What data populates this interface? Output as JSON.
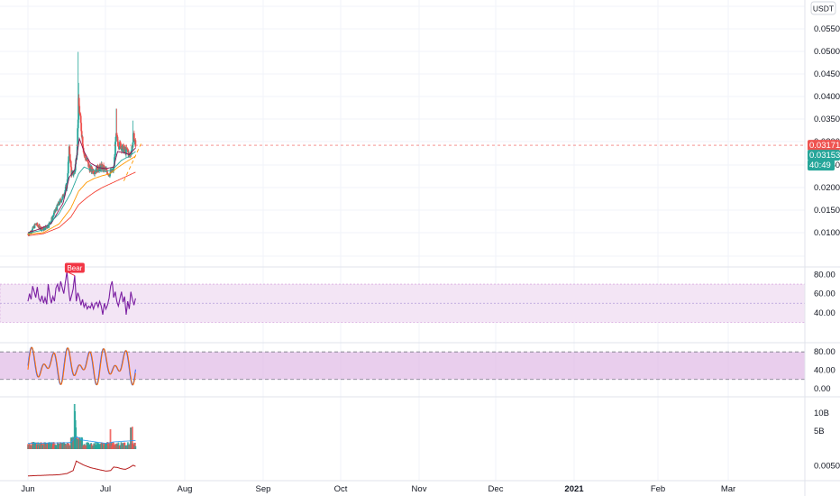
{
  "currency": {
    "label": "USDT"
  },
  "price_tags": {
    "upper": {
      "value": "0.03171",
      "color": "#ef5350"
    },
    "lower": {
      "value": "0.03153",
      "color": "#26a69a"
    },
    "countdown": {
      "value": "40:49",
      "color": "#26a69a"
    }
  },
  "colors": {
    "up": "#26a69a",
    "down": "#ef5350",
    "ma_fast": "#880e4f",
    "ma_mid": "#26a69a",
    "ma_slow": "#ff9800",
    "ma_long": "#f44336",
    "rsi": "#7b1fa2",
    "stoch_k": "#2962ff",
    "stoch_d": "#ff6d00",
    "band_fill": "#f3e5f5",
    "stoch_fill": "#e1bee7",
    "obv": "#b71c1c",
    "grid": "#f0f3fa",
    "divider": "#e0e3eb",
    "divergence_tag": "#f23645"
  },
  "chart_data": [
    {
      "type": "candlestick",
      "name": "price",
      "x_labels": [
        "Jun",
        "Jul",
        "Aug",
        "Sep",
        "Oct",
        "Nov",
        "Dec",
        "2021",
        "Feb",
        "Mar"
      ],
      "y_ticks": [
        "0.05500",
        "0.05000",
        "0.04500",
        "0.04000",
        "0.03500",
        "0.03000",
        "0.02500",
        "0.02000",
        "0.01500",
        "0.01000"
      ],
      "ylim": [
        0.0085,
        0.0595
      ],
      "last_price": 0.03171,
      "anchors": [
        [
          0,
          0.0145
        ],
        [
          0.05,
          0.0152
        ],
        [
          0.1,
          0.0165
        ],
        [
          0.15,
          0.0158
        ],
        [
          0.2,
          0.0155
        ],
        [
          0.25,
          0.016
        ],
        [
          0.3,
          0.0172
        ],
        [
          0.35,
          0.019
        ],
        [
          0.4,
          0.0205
        ],
        [
          0.45,
          0.0218
        ],
        [
          0.5,
          0.024
        ],
        [
          0.53,
          0.031
        ],
        [
          0.56,
          0.026
        ],
        [
          0.6,
          0.0265
        ],
        [
          0.63,
          0.031
        ],
        [
          0.65,
          0.04
        ],
        [
          0.68,
          0.0355
        ],
        [
          0.72,
          0.03
        ],
        [
          0.76,
          0.0285
        ],
        [
          0.8,
          0.027
        ],
        [
          0.85,
          0.0268
        ],
        [
          0.9,
          0.0272
        ],
        [
          0.95,
          0.0275
        ],
        [
          1.0,
          0.0268
        ],
        [
          1.05,
          0.0262
        ],
        [
          1.1,
          0.027
        ],
        [
          1.13,
          0.0335
        ],
        [
          1.16,
          0.032
        ],
        [
          1.2,
          0.0315
        ],
        [
          1.25,
          0.0305
        ],
        [
          1.28,
          0.0308
        ],
        [
          1.3,
          0.0295
        ],
        [
          1.33,
          0.031
        ],
        [
          1.36,
          0.0335
        ],
        [
          1.38,
          0.0318
        ]
      ],
      "spikes": [
        [
          0.645,
          0.0498
        ],
        [
          0.648,
          0.0438
        ],
        [
          0.658,
          0.0395
        ],
        [
          1.135,
          0.0388
        ],
        [
          1.345,
          0.0365
        ]
      ],
      "ma_fast": [
        [
          0,
          0.0148
        ],
        [
          0.15,
          0.0155
        ],
        [
          0.3,
          0.0166
        ],
        [
          0.45,
          0.0205
        ],
        [
          0.53,
          0.0255
        ],
        [
          0.6,
          0.027
        ],
        [
          0.66,
          0.033
        ],
        [
          0.72,
          0.0305
        ],
        [
          0.8,
          0.0283
        ],
        [
          0.9,
          0.0274
        ],
        [
          1.0,
          0.0272
        ],
        [
          1.1,
          0.0275
        ],
        [
          1.15,
          0.0305
        ],
        [
          1.25,
          0.0302
        ],
        [
          1.3,
          0.0299
        ],
        [
          1.38,
          0.0312
        ]
      ],
      "ma_mid": [
        [
          0,
          0.0147
        ],
        [
          0.2,
          0.0153
        ],
        [
          0.4,
          0.0185
        ],
        [
          0.55,
          0.0225
        ],
        [
          0.65,
          0.0262
        ],
        [
          0.72,
          0.0275
        ],
        [
          0.8,
          0.027
        ],
        [
          0.9,
          0.0268
        ],
        [
          1.0,
          0.0266
        ],
        [
          1.1,
          0.0272
        ],
        [
          1.2,
          0.0288
        ],
        [
          1.3,
          0.0296
        ],
        [
          1.38,
          0.0305
        ]
      ],
      "ma_slow": [
        [
          0,
          0.0145
        ],
        [
          0.2,
          0.0148
        ],
        [
          0.4,
          0.0165
        ],
        [
          0.55,
          0.0195
        ],
        [
          0.65,
          0.0228
        ],
        [
          0.75,
          0.0245
        ],
        [
          0.85,
          0.0253
        ],
        [
          0.95,
          0.0258
        ],
        [
          1.05,
          0.0262
        ],
        [
          1.15,
          0.0274
        ],
        [
          1.25,
          0.0284
        ],
        [
          1.38,
          0.0296
        ]
      ],
      "ma_long": [
        [
          0,
          0.0142
        ],
        [
          0.2,
          0.0146
        ],
        [
          0.4,
          0.0158
        ],
        [
          0.55,
          0.0178
        ],
        [
          0.65,
          0.0202
        ],
        [
          0.75,
          0.0215
        ],
        [
          0.85,
          0.0226
        ],
        [
          0.95,
          0.0235
        ],
        [
          1.05,
          0.0242
        ],
        [
          1.15,
          0.0249
        ],
        [
          1.25,
          0.0256
        ],
        [
          1.38,
          0.0265
        ]
      ],
      "trendline": [
        [
          1.23,
          0.0248
        ],
        [
          1.45,
          0.032
        ]
      ]
    },
    {
      "type": "line",
      "name": "rsi",
      "y_ticks": [
        "80.00",
        "60.00",
        "40.00"
      ],
      "ylim": [
        20,
        88
      ],
      "band": [
        30,
        70
      ],
      "midline": 50,
      "divergence_label": "Bear",
      "divergence_line": [
        [
          0.5,
          83
        ],
        [
          0.6,
          79
        ]
      ],
      "anchors": [
        [
          0,
          52
        ],
        [
          0.02,
          60
        ],
        [
          0.04,
          54
        ],
        [
          0.06,
          68
        ],
        [
          0.08,
          62
        ],
        [
          0.1,
          56
        ],
        [
          0.12,
          67
        ],
        [
          0.14,
          55
        ],
        [
          0.16,
          52
        ],
        [
          0.18,
          58
        ],
        [
          0.2,
          50
        ],
        [
          0.22,
          56
        ],
        [
          0.24,
          49
        ],
        [
          0.26,
          70
        ],
        [
          0.28,
          58
        ],
        [
          0.3,
          50
        ],
        [
          0.32,
          57
        ],
        [
          0.34,
          52
        ],
        [
          0.36,
          66
        ],
        [
          0.38,
          70
        ],
        [
          0.4,
          62
        ],
        [
          0.42,
          73
        ],
        [
          0.44,
          66
        ],
        [
          0.46,
          60
        ],
        [
          0.48,
          72
        ],
        [
          0.5,
          83
        ],
        [
          0.52,
          66
        ],
        [
          0.54,
          52
        ],
        [
          0.56,
          58
        ],
        [
          0.58,
          65
        ],
        [
          0.6,
          79
        ],
        [
          0.62,
          52
        ],
        [
          0.64,
          61
        ],
        [
          0.66,
          56
        ],
        [
          0.68,
          48
        ],
        [
          0.7,
          54
        ],
        [
          0.72,
          46
        ],
        [
          0.74,
          50
        ],
        [
          0.76,
          44
        ],
        [
          0.78,
          47
        ],
        [
          0.8,
          45
        ],
        [
          0.82,
          50
        ],
        [
          0.84,
          44
        ],
        [
          0.86,
          49
        ],
        [
          0.88,
          51
        ],
        [
          0.9,
          46
        ],
        [
          0.92,
          52
        ],
        [
          0.94,
          47
        ],
        [
          0.96,
          38
        ],
        [
          0.98,
          50
        ],
        [
          1.0,
          44
        ],
        [
          1.02,
          48
        ],
        [
          1.04,
          55
        ],
        [
          1.06,
          68
        ],
        [
          1.08,
          73
        ],
        [
          1.1,
          56
        ],
        [
          1.12,
          62
        ],
        [
          1.14,
          52
        ],
        [
          1.16,
          47
        ],
        [
          1.18,
          55
        ],
        [
          1.2,
          62
        ],
        [
          1.22,
          51
        ],
        [
          1.24,
          57
        ],
        [
          1.26,
          38
        ],
        [
          1.28,
          52
        ],
        [
          1.3,
          44
        ],
        [
          1.32,
          62
        ],
        [
          1.34,
          54
        ],
        [
          1.36,
          48
        ],
        [
          1.38,
          55
        ]
      ]
    },
    {
      "type": "line",
      "name": "stoch_rsi",
      "y_ticks": [
        "80.00",
        "40.00",
        "0.00"
      ],
      "ylim": [
        -2,
        100
      ],
      "band": [
        20,
        80
      ],
      "k_periods": 34,
      "d_lag": 0.006
    },
    {
      "type": "bar",
      "name": "volume",
      "y_ticks": [
        "10B",
        "5B"
      ],
      "ylim": [
        0,
        13
      ],
      "spikes": [
        [
          0.6,
          12.5
        ],
        [
          0.605,
          10.5
        ],
        [
          0.61,
          8
        ],
        [
          0.615,
          6
        ],
        [
          1.06,
          5.5
        ],
        [
          1.32,
          6
        ],
        [
          1.34,
          6.2
        ]
      ]
    },
    {
      "type": "line",
      "name": "obv",
      "y_ticks": [
        "0.00500"
      ],
      "ylim": [
        0.0025,
        0.0075
      ],
      "anchors": [
        [
          0,
          0.0033
        ],
        [
          0.2,
          0.0034
        ],
        [
          0.4,
          0.0035
        ],
        [
          0.5,
          0.0037
        ],
        [
          0.58,
          0.0042
        ],
        [
          0.62,
          0.0058
        ],
        [
          0.66,
          0.0055
        ],
        [
          0.72,
          0.0051
        ],
        [
          0.8,
          0.0047
        ],
        [
          0.9,
          0.0044
        ],
        [
          1.0,
          0.0041
        ],
        [
          1.06,
          0.0042
        ],
        [
          1.1,
          0.0048
        ],
        [
          1.15,
          0.0047
        ],
        [
          1.2,
          0.0045
        ],
        [
          1.25,
          0.0044
        ],
        [
          1.3,
          0.0047
        ],
        [
          1.35,
          0.0051
        ],
        [
          1.38,
          0.0049
        ]
      ]
    }
  ]
}
